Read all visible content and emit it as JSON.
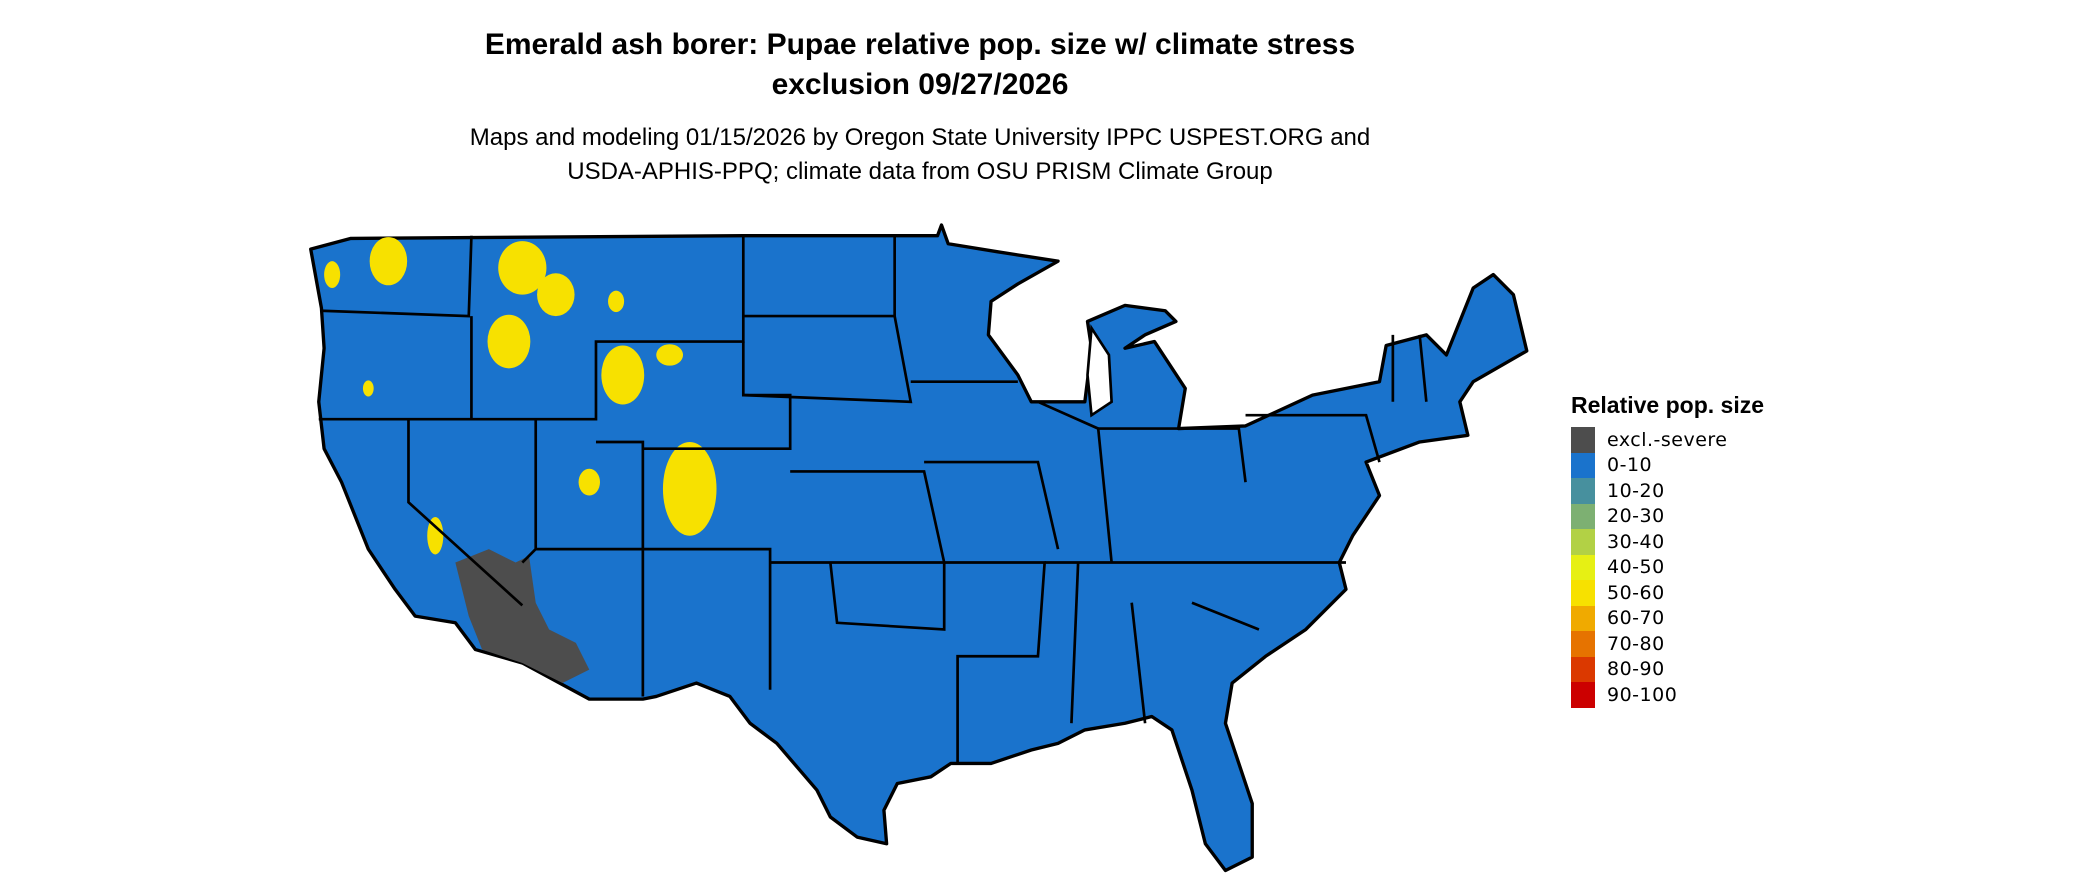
{
  "title": {
    "line1": "Emerald ash borer: Pupae relative pop. size w/ climate stress",
    "line2": "exclusion 09/27/2026"
  },
  "subtitle": {
    "line1": "Maps and modeling 01/15/2026 by Oregon State University IPPC USPEST.ORG and",
    "line2": "USDA-APHIS-PPQ; climate data from OSU PRISM Climate Group"
  },
  "legend": {
    "title": "Relative pop. size",
    "items": [
      {
        "label": "excl.-severe",
        "color": "#4d4d4d"
      },
      {
        "label": "0-10",
        "color": "#1a73cc"
      },
      {
        "label": "10-20",
        "color": "#47909e"
      },
      {
        "label": "20-30",
        "color": "#7db072"
      },
      {
        "label": "30-40",
        "color": "#b2d145"
      },
      {
        "label": "40-50",
        "color": "#e6f014"
      },
      {
        "label": "50-60",
        "color": "#f7e100"
      },
      {
        "label": "60-70",
        "color": "#f0aa00"
      },
      {
        "label": "70-80",
        "color": "#e67300"
      },
      {
        "label": "80-90",
        "color": "#db3900"
      },
      {
        "label": "90-100",
        "color": "#cc0000"
      }
    ]
  },
  "map": {
    "region": "Conterminous United States",
    "dominant_class": "0-10",
    "base_color": "#1a73cc",
    "excluded_color": "#4d4d4d",
    "hotspot_color": "#f7e100"
  }
}
